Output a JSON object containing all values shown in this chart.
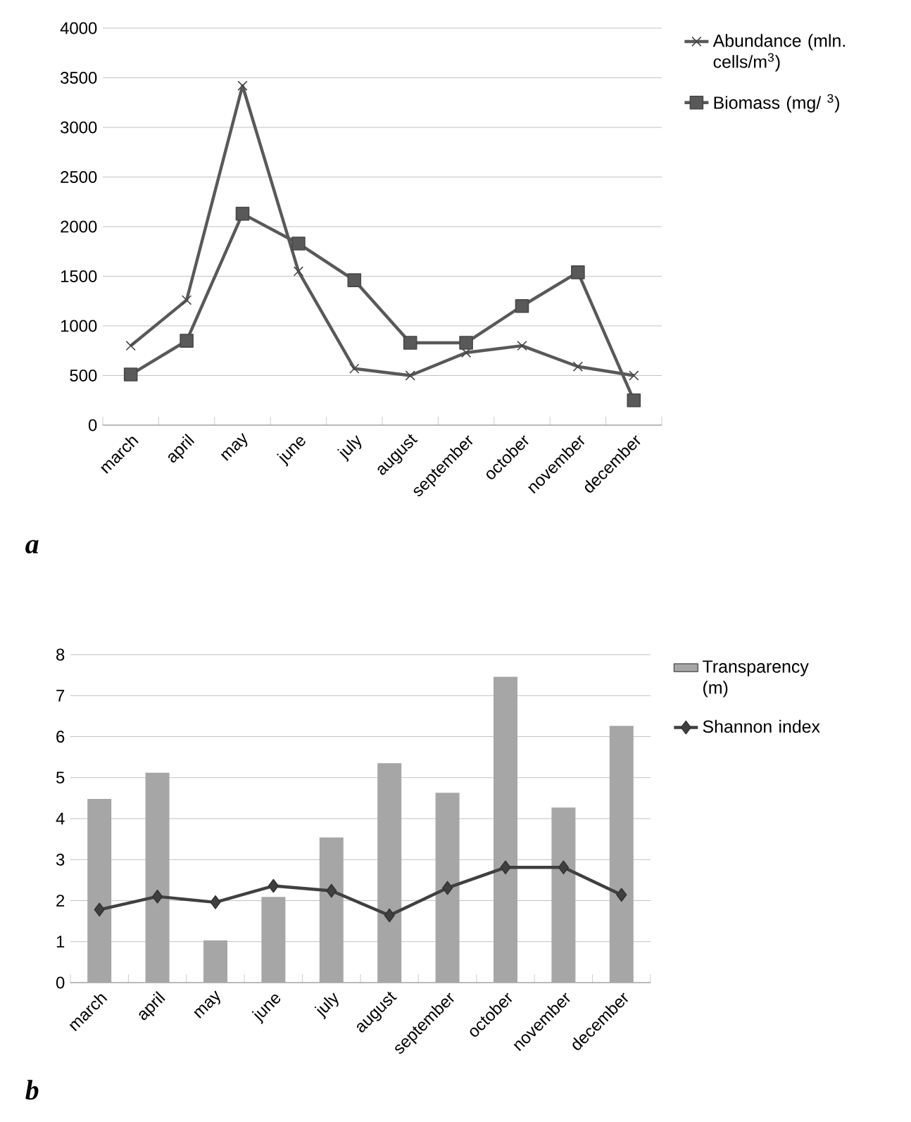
{
  "chart_data": [
    {
      "type": "line",
      "categories": [
        "march",
        "april",
        "may",
        "june",
        "july",
        "august",
        "september",
        "october",
        "november",
        "december"
      ],
      "series": [
        {
          "name": "Abundance (mln. cells/m$^{3}$)",
          "color": "#595959",
          "marker": "cross",
          "values": [
            800,
            1260,
            3420,
            1550,
            570,
            500,
            730,
            800,
            590,
            500
          ]
        },
        {
          "name": "Biomass (mg/ $^{3}$)",
          "color": "#595959",
          "marker": "square",
          "values": [
            510,
            850,
            2130,
            1830,
            1460,
            830,
            830,
            1200,
            1540,
            250
          ]
        }
      ],
      "ylim": [
        0,
        4000
      ],
      "yticks": [
        0,
        500,
        1000,
        1500,
        2000,
        2500,
        3000,
        3500,
        4000
      ],
      "grid": "y",
      "legend": "right",
      "annotations": [
        "a"
      ]
    },
    {
      "type": "bar",
      "categories": [
        "march",
        "april",
        "may",
        "june",
        "july",
        "august",
        "september",
        "october",
        "november",
        "december"
      ],
      "series": [
        {
          "name": "Transparency (m)",
          "type": "bar",
          "color": "#a6a6a6",
          "values": [
            4.48,
            5.12,
            1.03,
            2.09,
            3.54,
            5.35,
            4.63,
            7.46,
            4.27,
            6.26
          ]
        },
        {
          "name": "Shannon index",
          "type": "line",
          "color": "#404040",
          "marker": "diamond",
          "values": [
            1.78,
            2.1,
            1.96,
            2.36,
            2.24,
            1.64,
            2.31,
            2.81,
            2.81,
            2.14
          ]
        }
      ],
      "ylim": [
        0,
        8
      ],
      "yticks": [
        0,
        1,
        2,
        3,
        4,
        5,
        6,
        7,
        8
      ],
      "grid": "y",
      "legend": "right",
      "annotations": [
        "b"
      ]
    }
  ]
}
